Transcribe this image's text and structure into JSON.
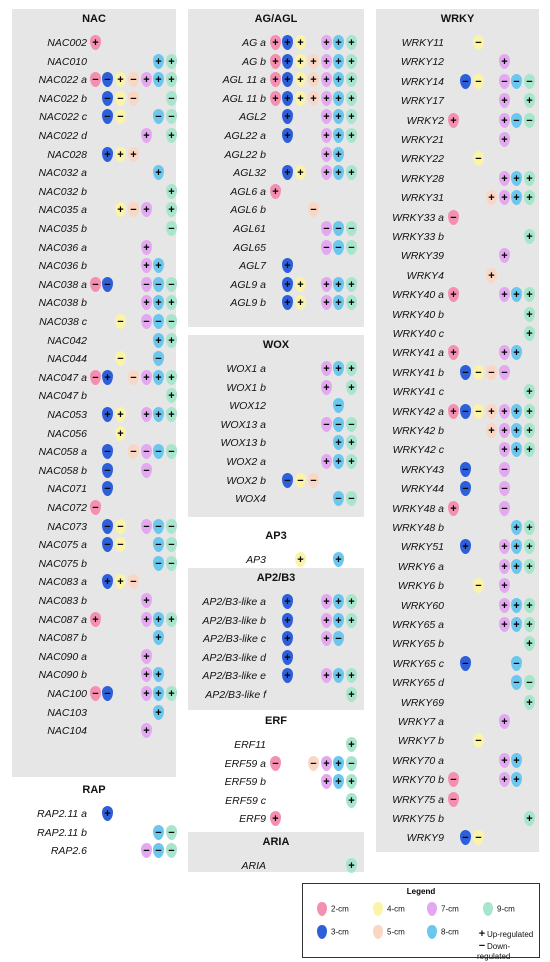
{
  "legend": {
    "title": "Legend",
    "stages": [
      {
        "key": "2cm",
        "label": "2-cm",
        "color": "#f48fb1"
      },
      {
        "key": "3cm",
        "label": "3-cm",
        "color": "#2d5fd9"
      },
      {
        "key": "4cm",
        "label": "4-cm",
        "color": "#fbf3a8"
      },
      {
        "key": "5cm",
        "label": "5-cm",
        "color": "#f9d7c4"
      },
      {
        "key": "7cm",
        "label": "7-cm",
        "color": "#e3a8ef"
      },
      {
        "key": "8cm",
        "label": "8-cm",
        "color": "#6cc7ef"
      },
      {
        "key": "9cm",
        "label": "9-cm",
        "color": "#a7e6cc"
      }
    ],
    "up_label": "Up-regulated",
    "down_label": "Down-regulated"
  },
  "families": [
    {
      "id": "NAC",
      "title": "NAC",
      "genes": [
        {
          "name": "NAC002",
          "marks": {
            "2cm": "+"
          }
        },
        {
          "name": "NAC010",
          "marks": {
            "8cm": "+",
            "9cm": "+"
          }
        },
        {
          "name": "NAC022 a",
          "marks": {
            "2cm": "−",
            "3cm": "−",
            "4cm": "+",
            "5cm": "−",
            "7cm": "+",
            "8cm": "+",
            "9cm": "+"
          }
        },
        {
          "name": "NAC022 b",
          "marks": {
            "3cm": "−",
            "4cm": "−",
            "5cm": "−",
            "9cm": "−"
          }
        },
        {
          "name": "NAC022 c",
          "marks": {
            "3cm": "−",
            "4cm": "−",
            "8cm": "−",
            "9cm": "−"
          }
        },
        {
          "name": "NAC022 d",
          "marks": {
            "7cm": "+",
            "9cm": "+"
          }
        },
        {
          "name": "NAC028",
          "marks": {
            "3cm": "+",
            "4cm": "+",
            "5cm": "+"
          }
        },
        {
          "name": "NAC032 a",
          "marks": {
            "8cm": "+"
          }
        },
        {
          "name": "NAC032 b",
          "marks": {
            "9cm": "+"
          }
        },
        {
          "name": "NAC035 a",
          "marks": {
            "4cm": "+",
            "5cm": "−",
            "7cm": "+",
            "9cm": "+"
          }
        },
        {
          "name": "NAC035 b",
          "marks": {
            "9cm": "−"
          }
        },
        {
          "name": "NAC036 a",
          "marks": {
            "7cm": "+"
          }
        },
        {
          "name": "NAC036 b",
          "marks": {
            "7cm": "+",
            "8cm": "+"
          }
        },
        {
          "name": "NAC038 a",
          "marks": {
            "2cm": "−",
            "3cm": "−",
            "7cm": "−",
            "8cm": "−",
            "9cm": "−"
          }
        },
        {
          "name": "NAC038 b",
          "marks": {
            "7cm": "+",
            "8cm": "+",
            "9cm": "+"
          }
        },
        {
          "name": "NAC038 c",
          "marks": {
            "4cm": "−",
            "7cm": "−",
            "8cm": "−",
            "9cm": "−"
          }
        },
        {
          "name": "NAC042",
          "marks": {
            "8cm": "+",
            "9cm": "+"
          }
        },
        {
          "name": "NAC044",
          "marks": {
            "4cm": "−",
            "8cm": "−"
          }
        },
        {
          "name": "NAC047 a",
          "marks": {
            "2cm": "−",
            "3cm": "+",
            "5cm": "−",
            "7cm": "+",
            "8cm": "+",
            "9cm": "+"
          }
        },
        {
          "name": "NAC047 b",
          "marks": {
            "9cm": "+"
          }
        },
        {
          "name": "NAC053",
          "marks": {
            "3cm": "+",
            "4cm": "+",
            "7cm": "+",
            "8cm": "+",
            "9cm": "+"
          }
        },
        {
          "name": "NAC056",
          "marks": {
            "4cm": "+"
          }
        },
        {
          "name": "NAC058 a",
          "marks": {
            "3cm": "−",
            "5cm": "−",
            "7cm": "−",
            "8cm": "−",
            "9cm": "−"
          }
        },
        {
          "name": "NAC058 b",
          "marks": {
            "3cm": "−",
            "7cm": "−"
          }
        },
        {
          "name": "NAC071",
          "marks": {
            "3cm": "−"
          }
        },
        {
          "name": "NAC072",
          "marks": {
            "2cm": "−"
          }
        },
        {
          "name": "NAC073",
          "marks": {
            "3cm": "−",
            "4cm": "−",
            "7cm": "−",
            "8cm": "−",
            "9cm": "−"
          }
        },
        {
          "name": "NAC075 a",
          "marks": {
            "3cm": "−",
            "4cm": "−",
            "8cm": "−",
            "9cm": "−"
          }
        },
        {
          "name": "NAC075 b",
          "marks": {
            "8cm": "−",
            "9cm": "−"
          }
        },
        {
          "name": "NAC083 a",
          "marks": {
            "3cm": "+",
            "4cm": "+",
            "5cm": "−"
          }
        },
        {
          "name": "NAC083 b",
          "marks": {
            "7cm": "+"
          }
        },
        {
          "name": "NAC087 a",
          "marks": {
            "2cm": "+",
            "7cm": "+",
            "8cm": "+",
            "9cm": "+"
          }
        },
        {
          "name": "NAC087 b",
          "marks": {
            "8cm": "+"
          }
        },
        {
          "name": "NAC090 a",
          "marks": {
            "7cm": "+"
          }
        },
        {
          "name": "NAC090 b",
          "marks": {
            "7cm": "+",
            "8cm": "+"
          }
        },
        {
          "name": "NAC100",
          "marks": {
            "2cm": "−",
            "3cm": "−",
            "7cm": "+",
            "8cm": "+",
            "9cm": "+"
          }
        },
        {
          "name": "NAC103",
          "marks": {
            "8cm": "+"
          }
        },
        {
          "name": "NAC104",
          "marks": {
            "7cm": "+"
          }
        }
      ]
    },
    {
      "id": "RAP",
      "title": "RAP",
      "genes": [
        {
          "name": "RAP2.11 a",
          "marks": {
            "3cm": "+"
          }
        },
        {
          "name": "RAP2.11 b",
          "marks": {
            "8cm": "−",
            "9cm": "−"
          }
        },
        {
          "name": "RAP2.6",
          "marks": {
            "7cm": "−",
            "8cm": "−",
            "9cm": "−"
          }
        }
      ]
    },
    {
      "id": "AGAGL",
      "title": "AG/AGL",
      "genes": [
        {
          "name": "AG a",
          "marks": {
            "2cm": "+",
            "3cm": "+",
            "4cm": "+",
            "7cm": "+",
            "8cm": "+",
            "9cm": "+"
          }
        },
        {
          "name": "AG b",
          "marks": {
            "2cm": "+",
            "3cm": "+",
            "4cm": "+",
            "5cm": "+",
            "7cm": "+",
            "8cm": "+",
            "9cm": "+"
          }
        },
        {
          "name": "AGL 11 a",
          "marks": {
            "2cm": "+",
            "3cm": "+",
            "4cm": "+",
            "5cm": "+",
            "7cm": "+",
            "8cm": "+",
            "9cm": "+"
          }
        },
        {
          "name": "AGL 11 b",
          "marks": {
            "2cm": "+",
            "3cm": "+",
            "4cm": "+",
            "5cm": "+",
            "7cm": "+",
            "8cm": "+",
            "9cm": "+"
          }
        },
        {
          "name": "AGL2",
          "marks": {
            "3cm": "+",
            "7cm": "+",
            "8cm": "+",
            "9cm": "+"
          }
        },
        {
          "name": "AGL22 a",
          "marks": {
            "3cm": "+",
            "7cm": "+",
            "8cm": "+",
            "9cm": "+"
          }
        },
        {
          "name": "AGL22 b",
          "marks": {
            "7cm": "+",
            "8cm": "+"
          }
        },
        {
          "name": "AGL32",
          "marks": {
            "3cm": "+",
            "4cm": "+",
            "7cm": "+",
            "8cm": "+",
            "9cm": "+"
          }
        },
        {
          "name": "AGL6 a",
          "marks": {
            "2cm": "+"
          }
        },
        {
          "name": "AGL6 b",
          "marks": {
            "5cm": "−"
          }
        },
        {
          "name": "AGL61",
          "marks": {
            "7cm": "−",
            "8cm": "−",
            "9cm": "−"
          }
        },
        {
          "name": "AGL65",
          "marks": {
            "7cm": "−",
            "8cm": "−",
            "9cm": "−"
          }
        },
        {
          "name": "AGL7",
          "marks": {
            "3cm": "+"
          }
        },
        {
          "name": "AGL9 a",
          "marks": {
            "3cm": "+",
            "4cm": "+",
            "7cm": "+",
            "8cm": "+",
            "9cm": "+"
          }
        },
        {
          "name": "AGL9 b",
          "marks": {
            "3cm": "+",
            "4cm": "+",
            "7cm": "+",
            "8cm": "+",
            "9cm": "+"
          }
        }
      ]
    },
    {
      "id": "WOX",
      "title": "WOX",
      "genes": [
        {
          "name": "WOX1 a",
          "marks": {
            "7cm": "+",
            "8cm": "+",
            "9cm": "+"
          }
        },
        {
          "name": "WOX1 b",
          "marks": {
            "7cm": "+",
            "9cm": "+"
          }
        },
        {
          "name": "WOX12",
          "marks": {
            "8cm": "−"
          }
        },
        {
          "name": "WOX13 a",
          "marks": {
            "7cm": "−",
            "8cm": "−",
            "9cm": "−"
          }
        },
        {
          "name": "WOX13 b",
          "marks": {
            "8cm": "+",
            "9cm": "+"
          }
        },
        {
          "name": "WOX2 a",
          "marks": {
            "7cm": "+",
            "8cm": "+",
            "9cm": "+"
          }
        },
        {
          "name": "WOX2 b",
          "marks": {
            "3cm": "−",
            "4cm": "−",
            "5cm": "−"
          }
        },
        {
          "name": "WOX4",
          "marks": {
            "8cm": "−",
            "9cm": "−"
          }
        }
      ]
    },
    {
      "id": "AP3",
      "title": "AP3",
      "genes": [
        {
          "name": "AP3",
          "marks": {
            "4cm": "+",
            "8cm": "+"
          }
        }
      ]
    },
    {
      "id": "AP2B3",
      "title": "AP2/B3",
      "genes": [
        {
          "name": "AP2/B3-like a",
          "marks": {
            "3cm": "+",
            "7cm": "+",
            "8cm": "+",
            "9cm": "+"
          }
        },
        {
          "name": "AP2/B3-like b",
          "marks": {
            "3cm": "+",
            "7cm": "+",
            "8cm": "+",
            "9cm": "+"
          }
        },
        {
          "name": "AP2/B3-like c",
          "marks": {
            "3cm": "+",
            "7cm": "+",
            "8cm": "−"
          }
        },
        {
          "name": "AP2/B3-like d",
          "marks": {
            "3cm": "+"
          }
        },
        {
          "name": "AP2/B3-like e",
          "marks": {
            "3cm": "+",
            "7cm": "+",
            "8cm": "+",
            "9cm": "+"
          }
        },
        {
          "name": "AP2/B3-like f",
          "marks": {
            "9cm": "+"
          }
        }
      ]
    },
    {
      "id": "ERF",
      "title": "ERF",
      "genes": [
        {
          "name": "ERF11",
          "marks": {
            "9cm": "+"
          }
        },
        {
          "name": "ERF59 a",
          "marks": {
            "2cm": "−",
            "5cm": "−",
            "7cm": "+",
            "8cm": "+",
            "9cm": "−"
          }
        },
        {
          "name": "ERF59 b",
          "marks": {
            "7cm": "+",
            "8cm": "+",
            "9cm": "+"
          }
        },
        {
          "name": "ERF59 c",
          "marks": {
            "9cm": "+"
          }
        },
        {
          "name": "ERF9",
          "marks": {
            "2cm": "+"
          }
        }
      ]
    },
    {
      "id": "ARIA",
      "title": "ARIA",
      "genes": [
        {
          "name": "ARIA",
          "marks": {
            "9cm": "+"
          }
        }
      ]
    },
    {
      "id": "WRKY",
      "title": "WRKY",
      "genes": [
        {
          "name": "WRKY11",
          "marks": {
            "4cm": "−"
          }
        },
        {
          "name": "WRKY12",
          "marks": {
            "7cm": "+"
          }
        },
        {
          "name": "WRKY14",
          "marks": {
            "3cm": "−",
            "4cm": "−",
            "7cm": "−",
            "8cm": "−",
            "9cm": "−"
          }
        },
        {
          "name": "WRKY17",
          "marks": {
            "7cm": "+",
            "9cm": "+"
          }
        },
        {
          "name": "WRKY2",
          "marks": {
            "2cm": "+",
            "7cm": "+",
            "8cm": "−",
            "9cm": "−"
          }
        },
        {
          "name": "WRKY21",
          "marks": {
            "7cm": "+"
          }
        },
        {
          "name": "WRKY22",
          "marks": {
            "4cm": "−"
          }
        },
        {
          "name": "WRKY28",
          "marks": {
            "7cm": "+",
            "8cm": "+",
            "9cm": "+"
          }
        },
        {
          "name": "WRKY31",
          "marks": {
            "5cm": "+",
            "7cm": "+",
            "8cm": "+",
            "9cm": "+"
          }
        },
        {
          "name": "WRKY33 a",
          "marks": {
            "2cm": "−"
          }
        },
        {
          "name": "WRKY33 b",
          "marks": {
            "9cm": "+"
          }
        },
        {
          "name": "WRKY39",
          "marks": {
            "7cm": "+"
          }
        },
        {
          "name": "WRKY4",
          "marks": {
            "5cm": "+"
          }
        },
        {
          "name": "WRKY40 a",
          "marks": {
            "2cm": "+",
            "7cm": "+",
            "8cm": "+",
            "9cm": "+"
          }
        },
        {
          "name": "WRKY40 b",
          "marks": {
            "9cm": "+"
          }
        },
        {
          "name": "WRKY40 c",
          "marks": {
            "9cm": "+"
          }
        },
        {
          "name": "WRKY41 a",
          "marks": {
            "2cm": "+",
            "7cm": "+",
            "8cm": "+"
          }
        },
        {
          "name": "WRKY41 b",
          "marks": {
            "3cm": "−",
            "4cm": "−",
            "5cm": "−",
            "7cm": "−"
          }
        },
        {
          "name": "WRKY41 c",
          "marks": {
            "9cm": "+"
          }
        },
        {
          "name": "WRKY42 a",
          "marks": {
            "2cm": "+",
            "3cm": "−",
            "4cm": "−",
            "5cm": "+",
            "7cm": "+",
            "8cm": "+",
            "9cm": "+"
          }
        },
        {
          "name": "WRKY42 b",
          "marks": {
            "5cm": "+",
            "7cm": "+",
            "8cm": "+",
            "9cm": "+"
          }
        },
        {
          "name": "WRKY42 c",
          "marks": {
            "7cm": "+",
            "8cm": "+",
            "9cm": "+"
          }
        },
        {
          "name": "WRKY43",
          "marks": {
            "3cm": "−",
            "7cm": "−"
          }
        },
        {
          "name": "WRKY44",
          "marks": {
            "3cm": "−",
            "7cm": "−"
          }
        },
        {
          "name": "WRKY48 a",
          "marks": {
            "2cm": "+",
            "7cm": "−"
          }
        },
        {
          "name": "WRKY48 b",
          "marks": {
            "8cm": "+",
            "9cm": "+"
          }
        },
        {
          "name": "WRKY51",
          "marks": {
            "3cm": "+",
            "7cm": "+",
            "8cm": "+",
            "9cm": "+"
          }
        },
        {
          "name": "WRKY6 a",
          "marks": {
            "7cm": "+",
            "8cm": "+",
            "9cm": "+"
          }
        },
        {
          "name": "WRKY6 b",
          "marks": {
            "4cm": "−",
            "7cm": "+"
          }
        },
        {
          "name": "WRKY60",
          "marks": {
            "7cm": "+",
            "8cm": "+",
            "9cm": "+"
          }
        },
        {
          "name": "WRKY65 a",
          "marks": {
            "7cm": "+",
            "8cm": "+",
            "9cm": "+"
          }
        },
        {
          "name": "WRKY65 b",
          "marks": {
            "9cm": "+"
          }
        },
        {
          "name": "WRKY65 c",
          "marks": {
            "3cm": "−",
            "8cm": "−"
          }
        },
        {
          "name": "WRKY65 d",
          "marks": {
            "8cm": "−",
            "9cm": "−"
          }
        },
        {
          "name": "WRKY69",
          "marks": {
            "9cm": "+"
          }
        },
        {
          "name": "WRKY7 a",
          "marks": {
            "7cm": "+"
          }
        },
        {
          "name": "WRKY7 b",
          "marks": {
            "4cm": "−"
          }
        },
        {
          "name": "WRKY70 a",
          "marks": {
            "7cm": "+",
            "8cm": "+"
          }
        },
        {
          "name": "WRKY70 b",
          "marks": {
            "2cm": "−",
            "7cm": "+",
            "8cm": "+"
          }
        },
        {
          "name": "WRKY75 a",
          "marks": {
            "2cm": "−"
          }
        },
        {
          "name": "WRKY75 b",
          "marks": {
            "9cm": "+"
          }
        },
        {
          "name": "WRKY9",
          "marks": {
            "3cm": "−",
            "4cm": "−"
          }
        }
      ]
    }
  ]
}
